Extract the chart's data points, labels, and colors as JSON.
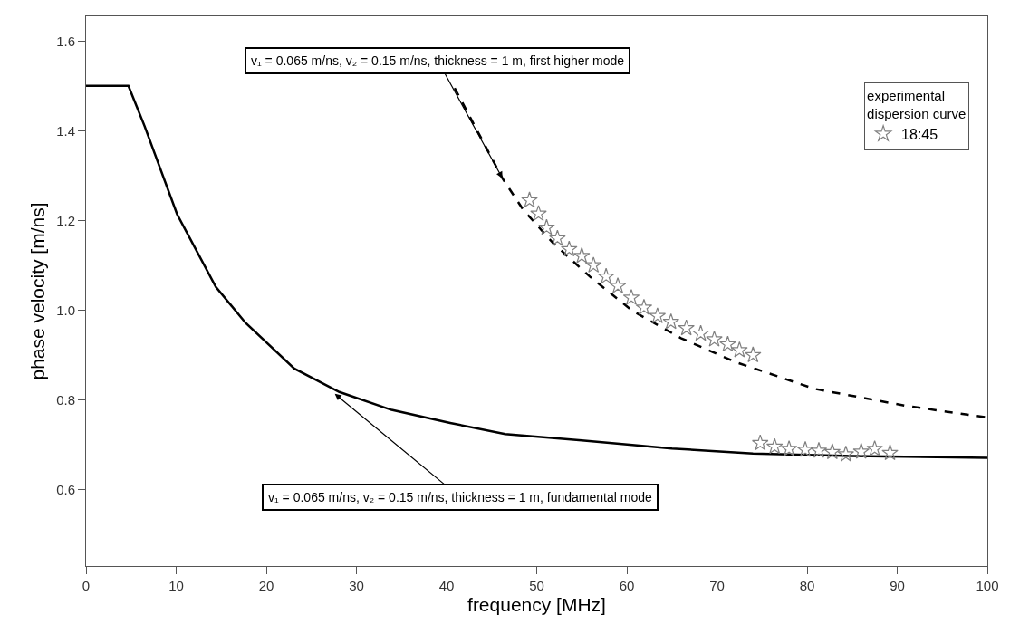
{
  "chart_data": {
    "type": "line",
    "xlabel": "frequency [MHz]",
    "ylabel": "phase velocity [m/ns]",
    "legend_title": "experimental\ndispersion curve",
    "xlim": [
      0,
      100
    ],
    "ylim": [
      0.43,
      1.655
    ],
    "xticks": [
      0,
      10,
      20,
      30,
      40,
      50,
      60,
      70,
      80,
      90,
      100
    ],
    "yticks": [
      0.6,
      0.8,
      {
        "value": 1.0,
        "label": "1.0"
      },
      1.2,
      1.4,
      1.6
    ],
    "legend": "top right",
    "series": [
      {
        "color": "#000000",
        "line_style": "solid",
        "marker": "none",
        "x": [
          0,
          4.7,
          6.5,
          10.1,
          14.4,
          17.7,
          23.1,
          28.1,
          33.9,
          40.4,
          46.5,
          55,
          60.6,
          65,
          74,
          85,
          100
        ],
        "values": [
          1.5,
          1.5,
          1.41,
          1.214,
          1.052,
          0.972,
          0.87,
          0.818,
          0.778,
          0.749,
          0.724,
          0.71,
          0.7,
          0.692,
          0.681,
          0.675,
          0.671
        ]
      },
      {
        "color": "#000000",
        "line_style": "dashed",
        "marker": "none",
        "x": [
          40.9,
          46.2,
          48.5,
          51.8,
          55.9,
          60.6,
          66,
          72,
          80.8,
          91,
          100
        ],
        "values": [
          1.495,
          1.294,
          1.224,
          1.15,
          1.075,
          0.999,
          0.938,
          0.885,
          0.825,
          0.787,
          0.761
        ]
      },
      {
        "type": "scatter",
        "name": "18:45",
        "color": "#808080",
        "marker": "star",
        "x": [
          49.2,
          50.2,
          51.1,
          52.3,
          53.6,
          55.0,
          56.3,
          57.7,
          59.0,
          60.5,
          61.9,
          63.4,
          64.9,
          66.6,
          68.2,
          69.7,
          71.2,
          72.5,
          74.0,
          74.8,
          76.4,
          78.0,
          79.8,
          81.3,
          82.8,
          84.3,
          86.0,
          87.5,
          89.2
        ],
        "values": [
          1.245,
          1.215,
          1.184,
          1.16,
          1.136,
          1.121,
          1.1,
          1.075,
          1.054,
          1.028,
          1.006,
          0.987,
          0.974,
          0.96,
          0.948,
          0.935,
          0.924,
          0.911,
          0.9,
          0.704,
          0.696,
          0.691,
          0.689,
          0.687,
          0.684,
          0.679,
          0.685,
          0.691,
          0.682
        ]
      }
    ],
    "annotations": [
      {
        "text": "v₁ = 0.065 m/ns, v₂ = 0.15 m/ns, thickness = 1 m, first higher mode",
        "x": 46.2,
        "y": 1.294
      },
      {
        "text": "v₁ = 0.065 m/ns, v₂ = 0.15 m/ns, thickness = 1 m, fundamental mode",
        "x": 27.6,
        "y": 0.814
      }
    ]
  }
}
